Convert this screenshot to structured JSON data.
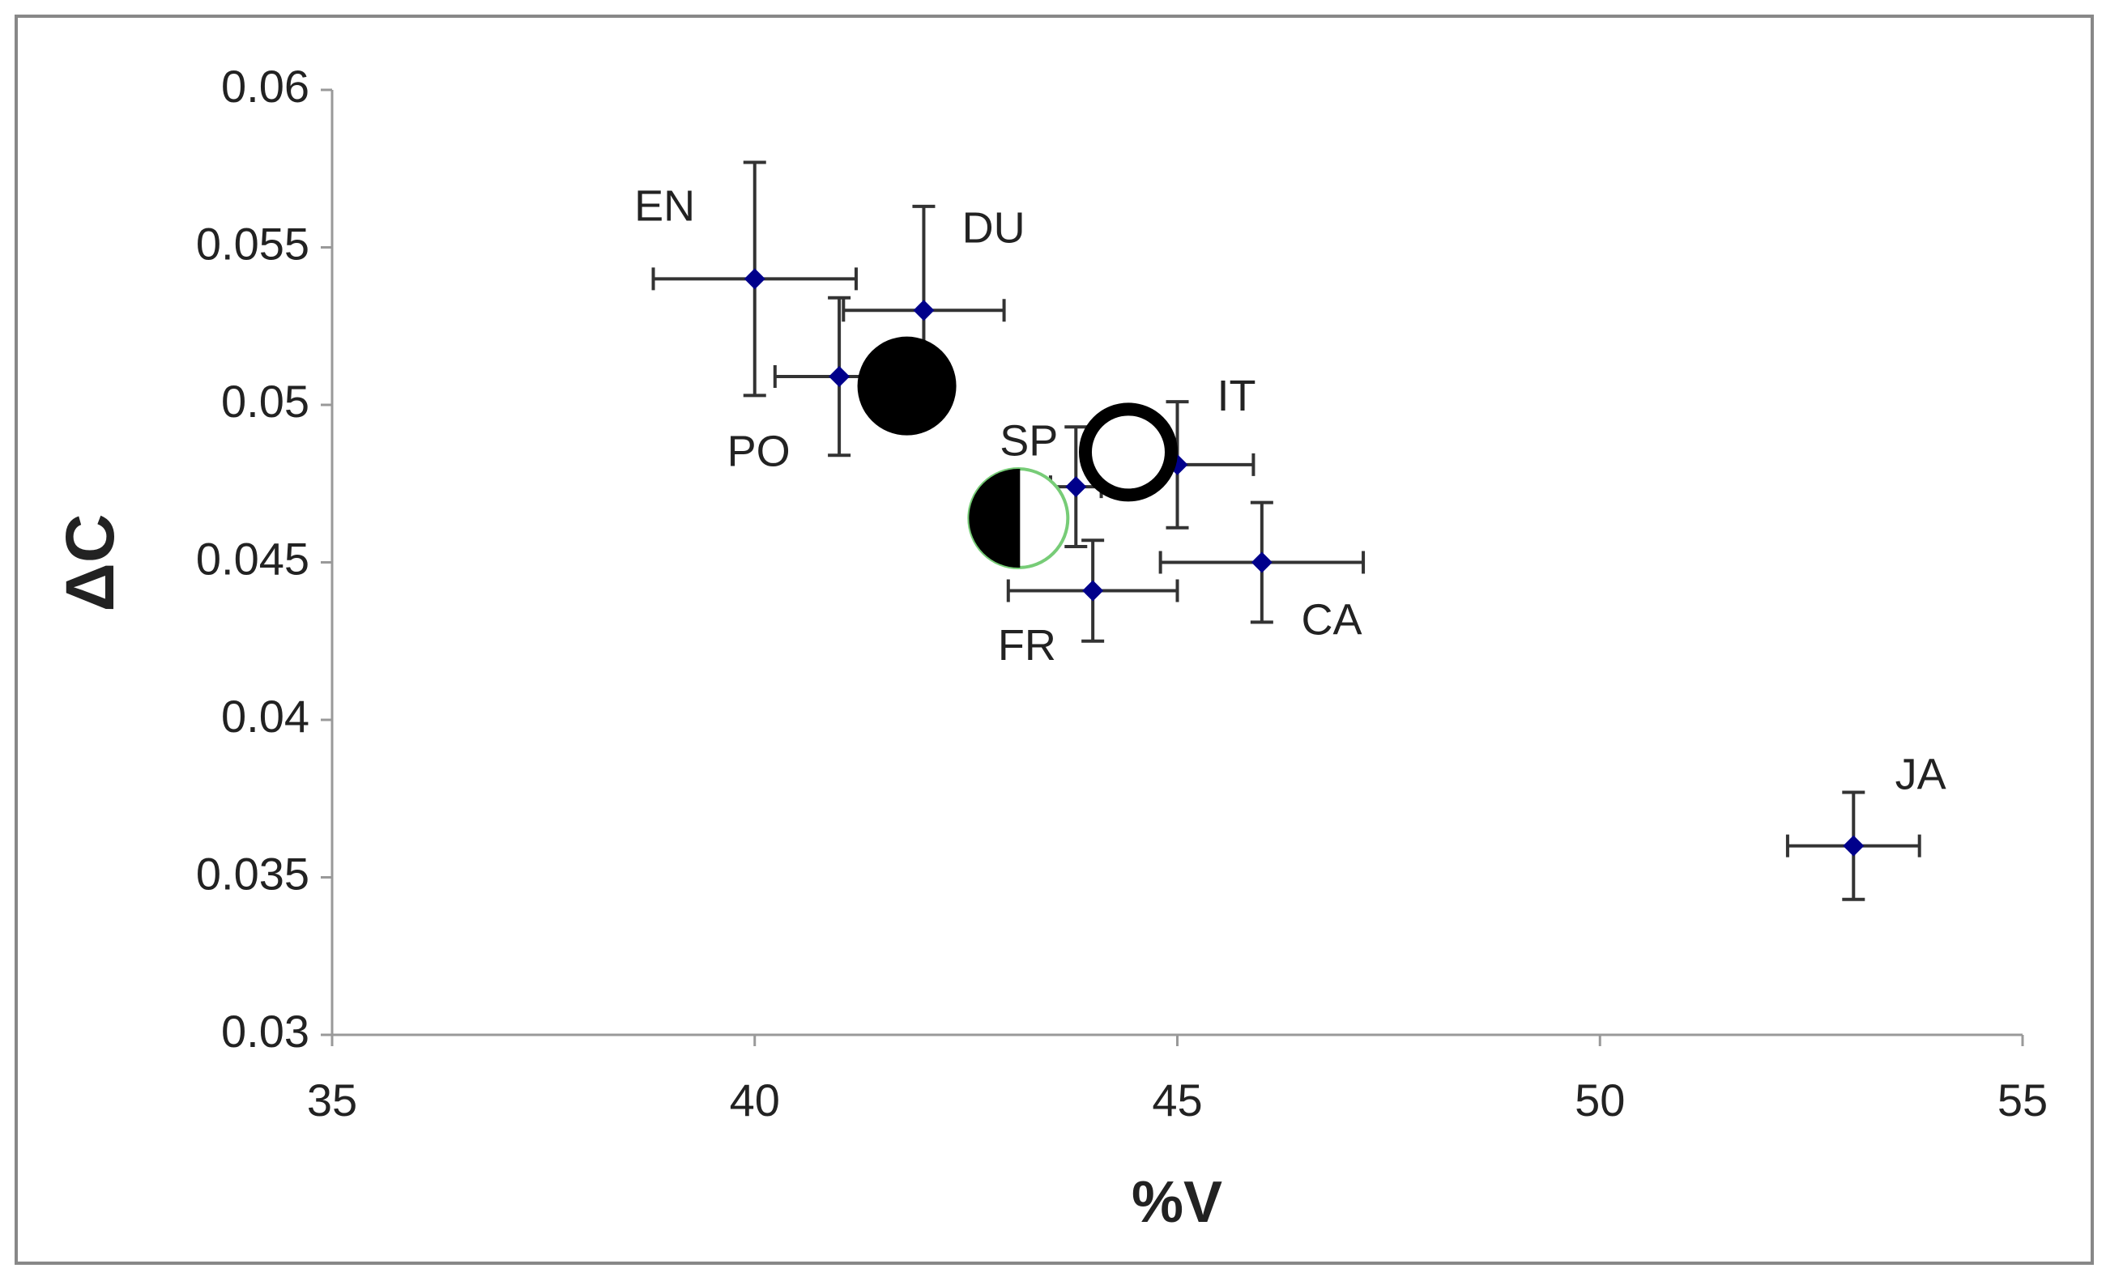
{
  "chart_data": {
    "type": "scatter",
    "xlabel": "%V",
    "ylabel": "ΔC",
    "xlim": [
      35,
      55
    ],
    "ylim": [
      0.03,
      0.06
    ],
    "xticks": [
      35,
      40,
      45,
      50,
      55
    ],
    "yticks": [
      0.03,
      0.035,
      0.04,
      0.045,
      0.05,
      0.055,
      0.06
    ],
    "series": [
      {
        "color": "#00008b",
        "labels": [
          "EN",
          "DU",
          "PO",
          "SP",
          "IT",
          "CA",
          "FR",
          "JA"
        ],
        "x": [
          40,
          42,
          41,
          43.8,
          45,
          46,
          44,
          53
        ],
        "y": [
          0.054,
          0.053,
          0.0509,
          0.0474,
          0.0481,
          0.045,
          0.0441,
          0.036
        ],
        "xerr": [
          1.2,
          0.95,
          0.76,
          0.3,
          0.9,
          1.2,
          1.0,
          0.78
        ],
        "yerr": [
          0.0037,
          0.0033,
          0.0025,
          0.0019,
          0.002,
          0.0019,
          0.0016,
          0.0017
        ]
      }
    ],
    "overlays": {
      "x": [
        41.8,
        43.12,
        44.42
      ],
      "y": [
        0.0506,
        0.0464,
        0.0485
      ],
      "styles": [
        "filled",
        "half",
        "open"
      ]
    }
  }
}
